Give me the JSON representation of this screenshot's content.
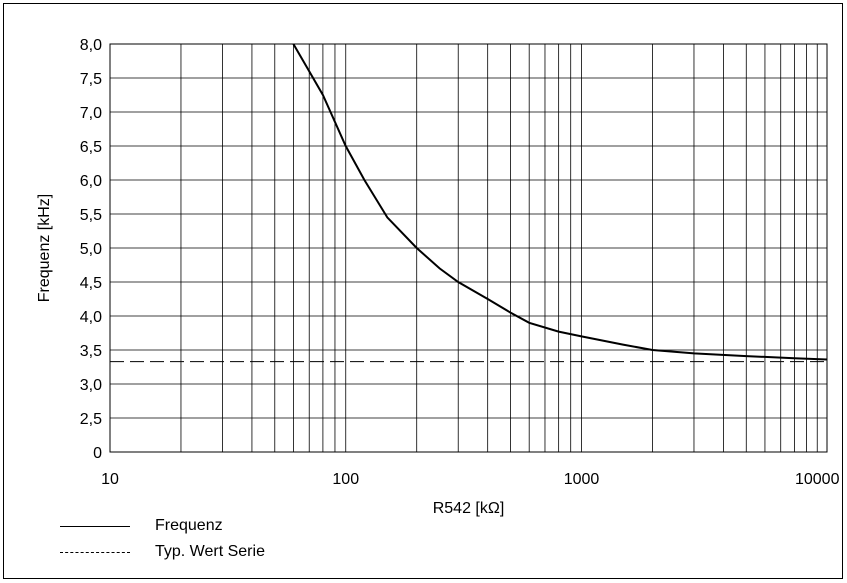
{
  "chart_data": {
    "type": "line",
    "xlabel": "R542 [kΩ]",
    "ylabel": "Frequenz [kHz]",
    "x_scale": "log",
    "xlim": [
      10,
      11000
    ],
    "ylim": [
      0,
      8.0
    ],
    "x_tick_labels": [
      "10",
      "100",
      "1000",
      "10000"
    ],
    "x_ticks": [
      10,
      100,
      1000,
      10000
    ],
    "y_tick_labels": [
      "0",
      "2,5",
      "3,0",
      "3,5",
      "4,0",
      "4,5",
      "5,0",
      "5,5",
      "6,0",
      "6,5",
      "7,0",
      "7,5",
      "8,0"
    ],
    "grid": true,
    "legend_position": "bottom-left",
    "series": [
      {
        "name": "Frequenz",
        "style": "solid",
        "x": [
          60,
          70,
          80,
          100,
          120,
          150,
          200,
          250,
          300,
          400,
          500,
          600,
          800,
          1000,
          1500,
          2000,
          3000,
          5000,
          8000,
          11000
        ],
        "y": [
          8.0,
          7.6,
          7.25,
          6.5,
          6.0,
          5.45,
          5.0,
          4.7,
          4.5,
          4.25,
          4.05,
          3.9,
          3.77,
          3.7,
          3.58,
          3.5,
          3.45,
          3.41,
          3.38,
          3.36
        ]
      },
      {
        "name": "Typ. Wert Serie",
        "style": "dashed",
        "x": [
          10,
          11000
        ],
        "y": [
          3.33,
          3.33
        ]
      }
    ]
  }
}
